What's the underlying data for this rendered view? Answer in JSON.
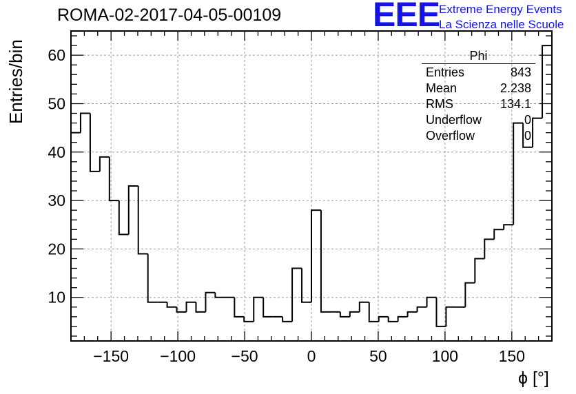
{
  "header": {
    "title": "ROMA-02-2017-04-05-00109",
    "logo_mark": "EEE",
    "logo_line1": "Extreme Energy Events",
    "logo_line2": "La Scienza nelle Scuole",
    "logo_color": "#1414e6"
  },
  "stats_box": {
    "title": "Phi",
    "rows": [
      {
        "label": "Entries",
        "value": "843"
      },
      {
        "label": "Mean",
        "value": "2.238"
      },
      {
        "label": "RMS",
        "value": "134.1"
      },
      {
        "label": "Underflow",
        "value": "0"
      },
      {
        "label": "Overflow",
        "value": "0"
      }
    ]
  },
  "chart_data": {
    "type": "bar",
    "style": "step-histogram",
    "title": "ROMA-02-2017-04-05-00109",
    "xlabel": "ϕ [°]",
    "ylabel": "Entries/bin",
    "xlim": [
      -180,
      180
    ],
    "ylim": [
      1,
      65
    ],
    "bin_width": 7.2,
    "xticks": [
      -150,
      -100,
      -50,
      0,
      50,
      100,
      150
    ],
    "yticks": [
      10,
      20,
      30,
      40,
      50,
      60
    ],
    "grid": true,
    "line_color": "#000000",
    "values": [
      44,
      48,
      36,
      39,
      30,
      23,
      33,
      19,
      9,
      9,
      8,
      7,
      9,
      7,
      11,
      10,
      10,
      6,
      5,
      10,
      6,
      6,
      5,
      16,
      9,
      28,
      7,
      7,
      6,
      7,
      9,
      5,
      6,
      5,
      6,
      7,
      8,
      10,
      4,
      8,
      8,
      13,
      18,
      22,
      24,
      25,
      46,
      41,
      47,
      62
    ]
  }
}
